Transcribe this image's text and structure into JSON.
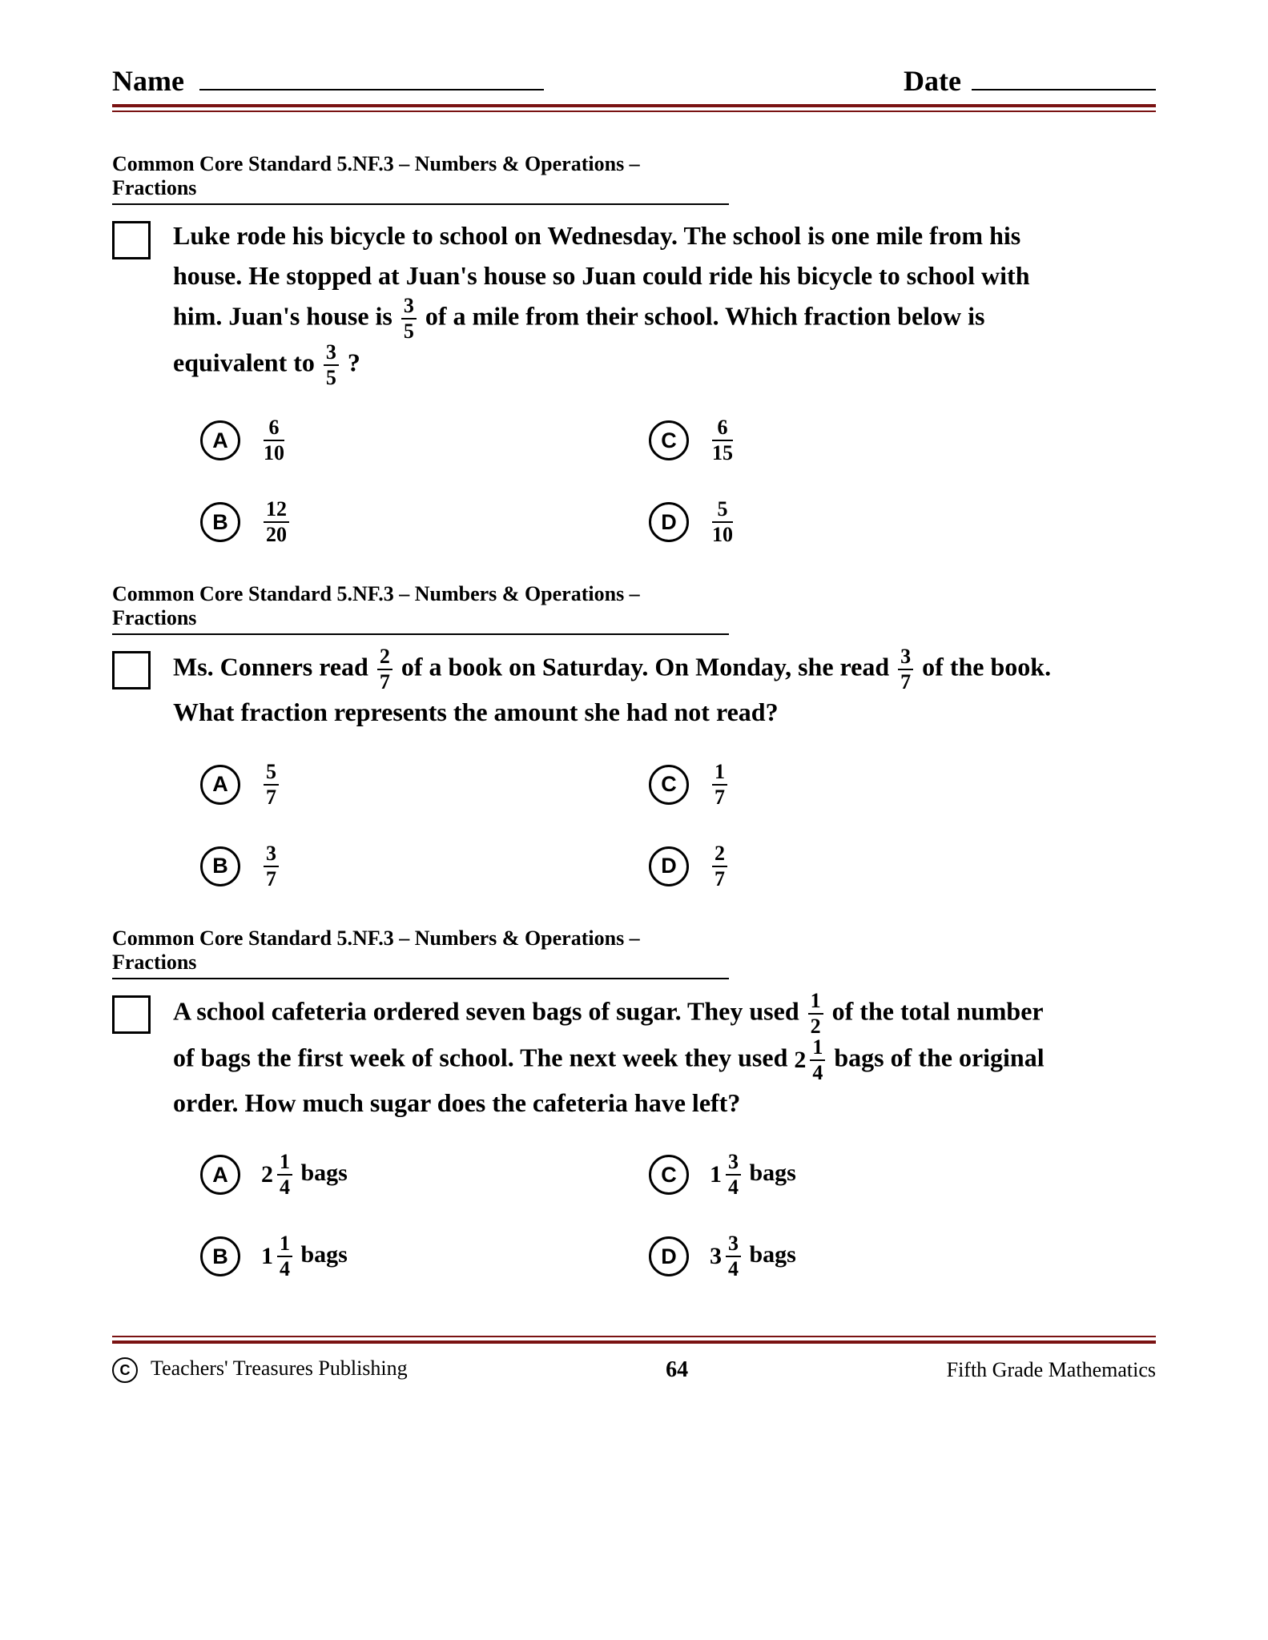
{
  "header": {
    "name_label": "Name",
    "date_label": "Date"
  },
  "standard_line": "Common Core Standard 5.NF.3  – Numbers & Operations – Fractions",
  "q1": {
    "t1": "Luke rode his bicycle to school on Wednesday.  The school is one mile from his house.  He stopped at Juan's house so Juan could ride his bicycle to school with him.  Juan's house is ",
    "f1n": "3",
    "f1d": "5",
    "t2": " of a mile from their school.  Which fraction below is equivalent to ",
    "f2n": "3",
    "f2d": "5",
    "t3": "?",
    "A": {
      "n": "6",
      "d": "10"
    },
    "B": {
      "n": "12",
      "d": "20"
    },
    "C": {
      "n": "6",
      "d": "15"
    },
    "D": {
      "n": "5",
      "d": "10"
    }
  },
  "q2": {
    "t1": "Ms. Conners read ",
    "f1n": "2",
    "f1d": "7",
    "t2": " of a book on Saturday.  On Monday, she read ",
    "f2n": "3",
    "f2d": "7",
    "t3": " of the book.  What fraction represents the amount she had not read?",
    "A": {
      "n": "5",
      "d": "7"
    },
    "B": {
      "n": "3",
      "d": "7"
    },
    "C": {
      "n": "1",
      "d": "7"
    },
    "D": {
      "n": "2",
      "d": "7"
    }
  },
  "q3": {
    "t1": "A school cafeteria ordered seven bags of sugar.  They used ",
    "f1n": "1",
    "f1d": "2",
    "t2": " of the total  number of bags the first week of school.  The next week they used ",
    "m_whole": "2",
    "m_n": "1",
    "m_d": "4",
    "t3": " bags of the original order.  How much sugar does the cafeteria have left?",
    "A": {
      "w": "2",
      "n": "1",
      "d": "4"
    },
    "B": {
      "w": "1",
      "n": "1",
      "d": "4"
    },
    "C": {
      "w": "1",
      "n": "3",
      "d": "4"
    },
    "D": {
      "w": "3",
      "n": "3",
      "d": "4"
    },
    "bags": " bags"
  },
  "footer": {
    "publisher": " Teachers' Treasures Publishing",
    "page_number": "64",
    "subject": "Fifth Grade Mathematics",
    "copyright_symbol": "C"
  },
  "letters": {
    "A": "A",
    "B": "B",
    "C": "C",
    "D": "D"
  }
}
